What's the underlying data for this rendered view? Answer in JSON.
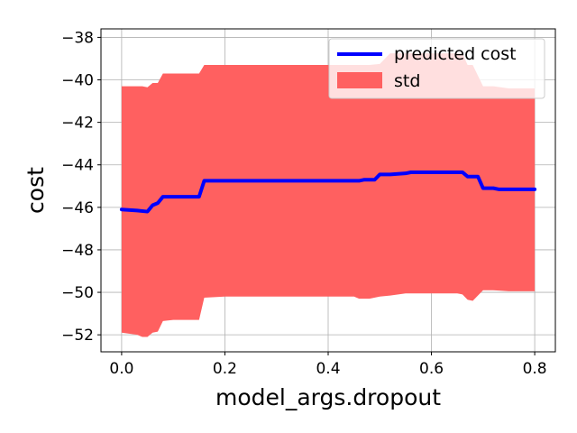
{
  "chart_data": {
    "type": "line",
    "xlabel": "model_args.dropout",
    "ylabel": "cost",
    "xlim": [
      -0.04,
      0.84
    ],
    "ylim": [
      -52.8,
      -37.6
    ],
    "xticks": [
      0.0,
      0.2,
      0.4,
      0.6,
      0.8
    ],
    "xtick_labels": [
      "0.0",
      "0.2",
      "0.4",
      "0.6",
      "0.8"
    ],
    "yticks": [
      -52,
      -50,
      -48,
      -46,
      -44,
      -42,
      -40,
      -38
    ],
    "ytick_labels": [
      "−52",
      "−50",
      "−48",
      "−46",
      "−44",
      "−42",
      "−40",
      "−38"
    ],
    "grid": true,
    "legend_position": "upper right",
    "series": [
      {
        "name": "predicted cost",
        "kind": "line",
        "color": "#0000ff",
        "x": [
          0.0,
          0.03,
          0.05,
          0.06,
          0.07,
          0.08,
          0.1,
          0.15,
          0.16,
          0.17,
          0.2,
          0.3,
          0.35,
          0.4,
          0.45,
          0.46,
          0.47,
          0.49,
          0.5,
          0.52,
          0.55,
          0.56,
          0.6,
          0.65,
          0.66,
          0.67,
          0.69,
          0.7,
          0.72,
          0.73,
          0.75,
          0.8
        ],
        "y": [
          -46.1,
          -46.15,
          -46.2,
          -45.9,
          -45.8,
          -45.5,
          -45.5,
          -45.5,
          -44.75,
          -44.75,
          -44.75,
          -44.75,
          -44.75,
          -44.75,
          -44.75,
          -44.75,
          -44.7,
          -44.7,
          -44.45,
          -44.45,
          -44.4,
          -44.35,
          -44.35,
          -44.35,
          -44.35,
          -44.55,
          -44.55,
          -45.1,
          -45.1,
          -45.15,
          -45.15,
          -45.15
        ]
      },
      {
        "name": "std",
        "kind": "band",
        "color": "#ff6060",
        "x": [
          0.0,
          0.03,
          0.04,
          0.05,
          0.06,
          0.07,
          0.08,
          0.1,
          0.15,
          0.16,
          0.2,
          0.25,
          0.3,
          0.35,
          0.4,
          0.45,
          0.46,
          0.47,
          0.48,
          0.5,
          0.52,
          0.55,
          0.6,
          0.65,
          0.66,
          0.67,
          0.68,
          0.7,
          0.72,
          0.75,
          0.8
        ],
        "upper": [
          -40.3,
          -40.3,
          -40.3,
          -40.35,
          -40.15,
          -40.15,
          -39.7,
          -39.7,
          -39.7,
          -39.3,
          -39.3,
          -39.3,
          -39.3,
          -39.3,
          -39.3,
          -39.3,
          -39.3,
          -39.3,
          -39.3,
          -39.25,
          -38.75,
          -38.75,
          -38.75,
          -38.75,
          -38.75,
          -39.3,
          -39.3,
          -40.3,
          -40.3,
          -40.4,
          -40.4
        ],
        "lower": [
          -51.9,
          -52.0,
          -52.1,
          -52.1,
          -51.9,
          -51.85,
          -51.35,
          -51.3,
          -51.3,
          -50.25,
          -50.2,
          -50.2,
          -50.2,
          -50.2,
          -50.2,
          -50.2,
          -50.3,
          -50.3,
          -50.3,
          -50.2,
          -50.15,
          -50.05,
          -50.05,
          -50.05,
          -50.1,
          -50.35,
          -50.4,
          -49.9,
          -49.9,
          -49.95,
          -49.95
        ]
      }
    ]
  }
}
